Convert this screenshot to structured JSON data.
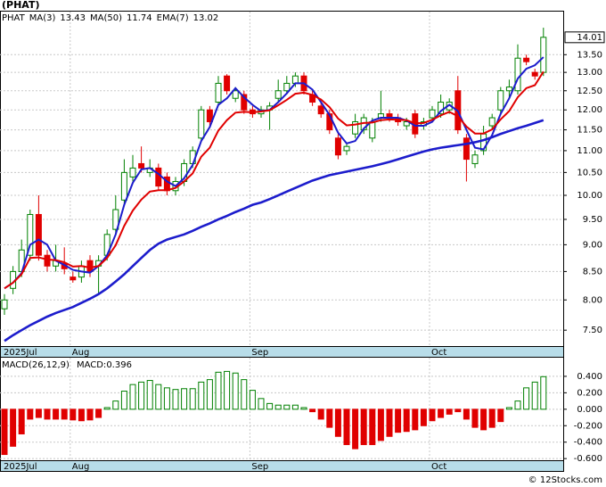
{
  "chart_data": [
    {
      "type": "candlestick",
      "title": "(PHAT)",
      "ticker": "PHAT",
      "categories": [
        "2025Jul",
        null,
        null,
        null,
        null,
        null,
        null,
        null,
        "Aug",
        null,
        null,
        null,
        null,
        null,
        null,
        null,
        null,
        null,
        null,
        null,
        null,
        null,
        null,
        null,
        null,
        null,
        null,
        null,
        null,
        "Sep",
        null,
        null,
        null,
        null,
        null,
        null,
        null,
        null,
        null,
        null,
        null,
        null,
        null,
        null,
        null,
        null,
        null,
        null,
        null,
        null,
        "Oct",
        null,
        null,
        null,
        null,
        null,
        null,
        null,
        null,
        null,
        null,
        null,
        null,
        null
      ],
      "open": [
        7.85,
        8.2,
        8.5,
        8.8,
        9.6,
        8.8,
        8.6,
        8.65,
        8.4,
        8.4,
        8.7,
        8.6,
        8.8,
        9.3,
        9.9,
        10.4,
        10.7,
        10.5,
        10.6,
        10.4,
        10.1,
        10.3,
        10.7,
        11.3,
        12.0,
        12.2,
        12.9,
        12.3,
        12.4,
        12.0,
        11.9,
        12.0,
        12.3,
        12.5,
        12.7,
        12.9,
        12.4,
        12.1,
        11.9,
        11.3,
        11.0,
        11.4,
        11.5,
        11.3,
        11.8,
        11.9,
        11.8,
        11.6,
        11.9,
        11.6,
        11.8,
        11.9,
        12.0,
        12.5,
        11.3,
        10.7,
        11.0,
        11.6,
        12.0,
        12.5,
        12.5,
        13.4,
        13.0,
        13.0
      ],
      "high": [
        8.1,
        8.6,
        9.1,
        9.7,
        10.0,
        8.9,
        9.0,
        8.95,
        8.5,
        8.7,
        8.8,
        8.8,
        9.3,
        10.0,
        10.8,
        10.9,
        11.1,
        10.8,
        10.7,
        10.5,
        10.4,
        10.8,
        11.1,
        12.1,
        12.1,
        12.9,
        12.95,
        12.6,
        12.5,
        12.1,
        12.1,
        12.2,
        12.8,
        12.9,
        13.0,
        13.0,
        12.5,
        12.2,
        12.0,
        11.4,
        11.2,
        11.9,
        11.9,
        11.8,
        12.5,
        12.0,
        11.9,
        11.8,
        12.0,
        11.8,
        12.1,
        12.4,
        12.3,
        12.9,
        11.4,
        11.0,
        11.6,
        11.9,
        12.6,
        12.8,
        13.8,
        13.5,
        13.1,
        14.3
      ],
      "low": [
        7.75,
        8.1,
        8.4,
        8.7,
        8.7,
        8.5,
        8.5,
        8.45,
        8.3,
        8.3,
        8.4,
        8.1,
        8.7,
        9.2,
        9.8,
        10.3,
        10.5,
        10.4,
        10.1,
        10.0,
        10.0,
        10.2,
        10.6,
        11.2,
        11.6,
        12.1,
        12.4,
        12.2,
        11.9,
        11.8,
        11.8,
        11.5,
        12.2,
        12.4,
        12.6,
        12.4,
        12.1,
        11.8,
        11.4,
        10.8,
        10.9,
        11.3,
        11.4,
        11.2,
        11.7,
        11.7,
        11.6,
        11.5,
        11.3,
        11.5,
        11.7,
        11.8,
        11.9,
        11.4,
        10.3,
        10.6,
        10.9,
        11.5,
        11.9,
        12.3,
        12.4,
        13.2,
        12.8,
        12.9
      ],
      "close": [
        8.0,
        8.5,
        8.9,
        9.6,
        8.8,
        8.6,
        8.7,
        8.55,
        8.35,
        8.6,
        8.5,
        8.7,
        9.2,
        9.7,
        10.5,
        10.6,
        10.6,
        10.6,
        10.2,
        10.1,
        10.3,
        10.7,
        11.0,
        12.0,
        11.7,
        12.7,
        12.5,
        12.5,
        12.0,
        11.9,
        12.0,
        12.1,
        12.5,
        12.7,
        12.9,
        12.5,
        12.2,
        11.9,
        11.5,
        10.9,
        11.1,
        11.7,
        11.8,
        11.7,
        11.9,
        11.8,
        11.7,
        11.7,
        11.4,
        11.7,
        12.0,
        12.2,
        12.2,
        11.5,
        10.8,
        10.9,
        11.4,
        11.8,
        12.5,
        12.6,
        13.4,
        13.3,
        12.9,
        14.01
      ],
      "up_color": "#008000",
      "down_color": "#e00000",
      "series": [
        {
          "name": "MA(3)",
          "color": "#1c1ccc",
          "width": 2,
          "values": [
            8.2,
            8.3,
            8.47,
            9.0,
            9.1,
            9.0,
            8.7,
            8.62,
            8.53,
            8.5,
            8.48,
            8.6,
            8.8,
            9.2,
            9.8,
            10.27,
            10.57,
            10.6,
            10.47,
            10.3,
            10.2,
            10.37,
            10.67,
            11.23,
            11.57,
            12.13,
            12.3,
            12.57,
            12.33,
            12.13,
            11.97,
            12.0,
            12.2,
            12.43,
            12.7,
            12.7,
            12.53,
            12.2,
            11.87,
            11.43,
            11.17,
            11.23,
            11.53,
            11.73,
            11.8,
            11.8,
            11.8,
            11.73,
            11.6,
            11.6,
            11.7,
            11.97,
            12.13,
            11.97,
            11.5,
            11.07,
            11.03,
            11.37,
            11.9,
            12.3,
            12.83,
            13.1,
            13.2,
            13.43
          ]
        },
        {
          "name": "MA(50)",
          "color": "#1c1ccc",
          "width": 2.6,
          "values": [
            7.33,
            7.42,
            7.5,
            7.58,
            7.65,
            7.72,
            7.78,
            7.83,
            7.88,
            7.95,
            8.02,
            8.1,
            8.2,
            8.32,
            8.45,
            8.6,
            8.75,
            8.9,
            9.02,
            9.1,
            9.15,
            9.2,
            9.27,
            9.35,
            9.42,
            9.5,
            9.57,
            9.65,
            9.72,
            9.8,
            9.85,
            9.92,
            10.0,
            10.08,
            10.16,
            10.24,
            10.32,
            10.38,
            10.44,
            10.48,
            10.52,
            10.56,
            10.6,
            10.64,
            10.69,
            10.74,
            10.8,
            10.86,
            10.92,
            10.98,
            11.03,
            11.07,
            11.1,
            11.13,
            11.16,
            11.2,
            11.25,
            11.32,
            11.4,
            11.47,
            11.54,
            11.6,
            11.67,
            11.74
          ]
        },
        {
          "name": "EMA(7)",
          "color": "#e00000",
          "width": 2,
          "values": [
            8.2,
            8.3,
            8.45,
            8.75,
            8.76,
            8.72,
            8.71,
            8.67,
            8.59,
            8.6,
            8.57,
            8.6,
            8.75,
            8.99,
            9.37,
            9.68,
            9.91,
            10.08,
            10.11,
            10.11,
            10.16,
            10.3,
            10.48,
            10.86,
            11.07,
            11.48,
            11.74,
            11.93,
            11.95,
            11.94,
            11.96,
            11.99,
            12.12,
            12.26,
            12.42,
            12.45,
            12.39,
            12.27,
            12.07,
            11.78,
            11.61,
            11.63,
            11.67,
            11.68,
            11.74,
            11.76,
            11.75,
            11.74,
            11.66,
            11.67,
            11.75,
            11.86,
            11.95,
            11.84,
            11.58,
            11.41,
            11.41,
            11.51,
            11.76,
            11.97,
            12.33,
            12.57,
            12.65,
            13.02
          ]
        }
      ],
      "log_scale": true,
      "grid": true,
      "ylim": [
        7.25,
        14.8
      ],
      "yticks": [
        {
          "value": 7.5,
          "label": "7.50"
        },
        {
          "value": 8,
          "label": "8.00"
        },
        {
          "value": 8.5,
          "label": "8.50"
        },
        {
          "value": 9,
          "label": "9.00"
        },
        {
          "value": 9.5,
          "label": "9.50"
        },
        {
          "value": 10,
          "label": "10.00"
        },
        {
          "value": 10.5,
          "label": "10.50"
        },
        {
          "value": 11,
          "label": "11.00"
        },
        {
          "value": 11.5,
          "label": "11.50"
        },
        {
          "value": 12,
          "label": "12.00"
        },
        {
          "value": 12.5,
          "label": "12.50"
        },
        {
          "value": 13,
          "label": "13.00"
        },
        {
          "value": 13.5,
          "label": "13.50"
        }
      ]
    },
    {
      "type": "bar",
      "title": "MACD(26,12,9)",
      "categories": [
        "2025Jul",
        null,
        null,
        null,
        null,
        null,
        null,
        null,
        "Aug",
        null,
        null,
        null,
        null,
        null,
        null,
        null,
        null,
        null,
        null,
        null,
        null,
        null,
        null,
        null,
        null,
        null,
        null,
        null,
        null,
        "Sep",
        null,
        null,
        null,
        null,
        null,
        null,
        null,
        null,
        null,
        null,
        null,
        null,
        null,
        null,
        null,
        null,
        null,
        null,
        null,
        null,
        "Oct",
        null,
        null,
        null,
        null,
        null,
        null,
        null,
        null,
        null,
        null,
        null,
        null,
        null
      ],
      "series": [
        {
          "name": "MACD:",
          "color": "#1c1ccc",
          "up_color": "#008000",
          "down_color": "#e00000",
          "values": [
            -0.55,
            -0.45,
            -0.3,
            -0.12,
            -0.1,
            -0.12,
            -0.12,
            -0.12,
            -0.13,
            -0.14,
            -0.13,
            -0.1,
            0.02,
            0.1,
            0.22,
            0.3,
            0.33,
            0.35,
            0.3,
            0.26,
            0.24,
            0.25,
            0.25,
            0.33,
            0.36,
            0.45,
            0.46,
            0.44,
            0.36,
            0.23,
            0.13,
            0.07,
            0.05,
            0.05,
            0.05,
            0.02,
            -0.03,
            -0.12,
            -0.22,
            -0.33,
            -0.43,
            -0.48,
            -0.43,
            -0.43,
            -0.38,
            -0.33,
            -0.28,
            -0.27,
            -0.25,
            -0.2,
            -0.14,
            -0.1,
            -0.06,
            -0.03,
            -0.12,
            -0.22,
            -0.25,
            -0.22,
            -0.15,
            0.02,
            0.1,
            0.26,
            0.33,
            0.396
          ]
        }
      ],
      "grid": true,
      "ylim": [
        -0.62,
        0.627
      ],
      "yticks": [
        {
          "value": -0.6,
          "label": "-0.600"
        },
        {
          "value": -0.4,
          "label": "-0.400"
        },
        {
          "value": -0.2,
          "label": "-0.200"
        },
        {
          "value": 0,
          "label": "0.000"
        },
        {
          "value": 0.2,
          "label": "0.200"
        },
        {
          "value": 0.4,
          "label": "0.400"
        }
      ]
    }
  ],
  "footer": "© 12Stocks.com"
}
